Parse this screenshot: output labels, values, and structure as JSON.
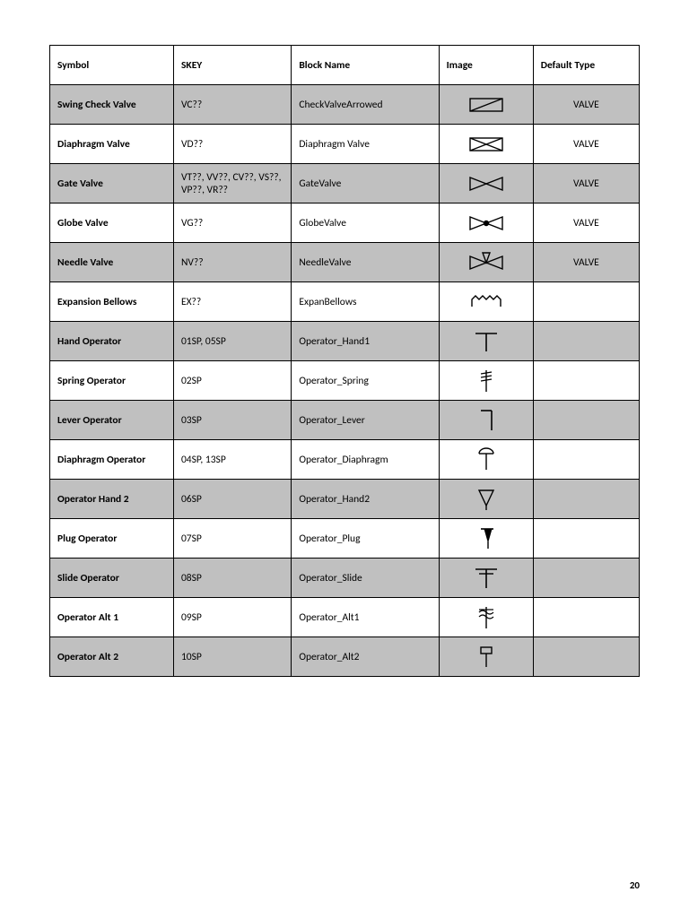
{
  "page_number": "20",
  "table": {
    "headers": {
      "symbol": "Symbol",
      "skey": "SKEY",
      "block_name": "Block Name",
      "image": "Image",
      "default_type": "Default Type"
    },
    "column_widths_pct": [
      21,
      20,
      25,
      16,
      18
    ],
    "shaded_row_bg": "#c0c0c0",
    "border_color": "#000000",
    "font_size_pt": 9,
    "header_font_weight": 700,
    "symbol_col_font_weight": 700,
    "rows": [
      {
        "symbol": "Swing Check Valve",
        "skey": "VC??",
        "block_name": "CheckValveArrowed",
        "default_type": "VALVE",
        "shaded": true,
        "icon": "swing-check"
      },
      {
        "symbol": "Diaphragm Valve",
        "skey": "VD??",
        "block_name": "Diaphragm Valve",
        "default_type": "VALVE",
        "shaded": false,
        "icon": "diaphragm-valve"
      },
      {
        "symbol": "Gate Valve",
        "skey": "VT??, VV??, CV??, VS??, VP??, VR??",
        "block_name": "GateValve",
        "default_type": "VALVE",
        "shaded": true,
        "icon": "gate-valve"
      },
      {
        "symbol": "Globe Valve",
        "skey": "VG??",
        "block_name": "GlobeValve",
        "default_type": "VALVE",
        "shaded": false,
        "icon": "globe-valve"
      },
      {
        "symbol": "Needle Valve",
        "skey": "NV??",
        "block_name": "NeedleValve",
        "default_type": "VALVE",
        "shaded": true,
        "icon": "needle-valve"
      },
      {
        "symbol": "Expansion Bellows",
        "skey": "EX??",
        "block_name": "ExpanBellows",
        "default_type": "",
        "shaded": false,
        "icon": "expan-bellows"
      },
      {
        "symbol": "Hand Operator",
        "skey": "01SP, 05SP",
        "block_name": "Operator_Hand1",
        "default_type": "",
        "shaded": true,
        "icon": "op-hand1"
      },
      {
        "symbol": "Spring Operator",
        "skey": "02SP",
        "block_name": "Operator_Spring",
        "default_type": "",
        "shaded": false,
        "icon": "op-spring"
      },
      {
        "symbol": "Lever Operator",
        "skey": "03SP",
        "block_name": "Operator_Lever",
        "default_type": "",
        "shaded": true,
        "icon": "op-lever"
      },
      {
        "symbol": "Diaphragm Operator",
        "skey": "04SP, 13SP",
        "block_name": "Operator_Diaphragm",
        "default_type": "",
        "shaded": false,
        "icon": "op-diaphragm"
      },
      {
        "symbol": "Operator Hand 2",
        "skey": "06SP",
        "block_name": "Operator_Hand2",
        "default_type": "",
        "shaded": true,
        "icon": "op-hand2"
      },
      {
        "symbol": "Plug Operator",
        "skey": "07SP",
        "block_name": "Operator_Plug",
        "default_type": "",
        "shaded": false,
        "icon": "op-plug"
      },
      {
        "symbol": "Slide Operator",
        "skey": "08SP",
        "block_name": "Operator_Slide",
        "default_type": "",
        "shaded": true,
        "icon": "op-slide"
      },
      {
        "symbol": "Operator Alt 1",
        "skey": "09SP",
        "block_name": "Operator_Alt1",
        "default_type": "",
        "shaded": false,
        "icon": "op-alt1"
      },
      {
        "symbol": "Operator Alt 2",
        "skey": "10SP",
        "block_name": "Operator_Alt2",
        "default_type": "",
        "shaded": true,
        "icon": "op-alt2"
      }
    ]
  },
  "icons_stroke": "#000000",
  "icons_stroke_width": 1.4
}
